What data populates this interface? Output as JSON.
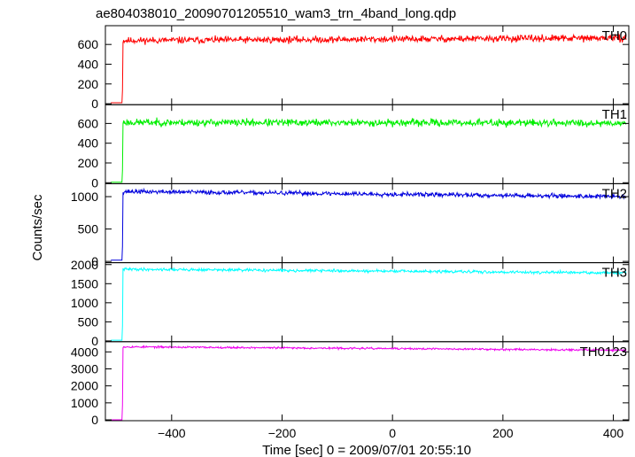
{
  "title": "ae804038010_20090701205510_wam3_trn_4band_long.qdp",
  "xlabel": "Time [sec] 0 = 2009/07/01 20:55:10",
  "ylabel": "Counts/sec",
  "chart_data": {
    "type": "line",
    "title": "ae804038010_20090701205510_wam3_trn_4band_long.qdp",
    "xlabel": "Time [sec] 0 = 2009/07/01 20:55:10",
    "ylabel": "Counts/sec",
    "xlim": [
      -520,
      428
    ],
    "x_ticks": [
      -400,
      -200,
      0,
      200,
      400
    ],
    "x_tick_labels": [
      "−400",
      "−200",
      "0",
      "200",
      "400"
    ],
    "grid": false,
    "panels": [
      {
        "name": "TH0",
        "color": "#ff0000",
        "ylim": [
          -10,
          790
        ],
        "y_ticks": [
          0,
          200,
          400,
          600
        ],
        "y_tick_labels": [
          "0",
          "200",
          "400",
          "600"
        ],
        "pre_level": 10,
        "jump_x": -488,
        "level_start": 640,
        "level_end": 665,
        "noise": 28,
        "seed": 11
      },
      {
        "name": "TH1",
        "color": "#00ee00",
        "ylim": [
          -10,
          790
        ],
        "y_ticks": [
          0,
          200,
          400,
          600
        ],
        "y_tick_labels": [
          "0",
          "200",
          "400",
          "600"
        ],
        "pre_level": 5,
        "jump_x": -488,
        "level_start": 610,
        "level_end": 605,
        "noise": 30,
        "seed": 23
      },
      {
        "name": "TH2",
        "color": "#0000dd",
        "ylim": [
          -20,
          1200
        ],
        "y_ticks": [
          0,
          500,
          1000
        ],
        "y_tick_labels": [
          "0",
          "500",
          "1000"
        ],
        "pre_level": 20,
        "jump_x": -488,
        "level_start": 1080,
        "level_end": 1000,
        "noise": 28,
        "seed": 37
      },
      {
        "name": "TH3",
        "color": "#00ffff",
        "ylim": [
          -20,
          2050
        ],
        "y_ticks": [
          0,
          500,
          1000,
          1500,
          2000
        ],
        "y_tick_labels": [
          "0",
          "500",
          "1000",
          "1500",
          "2000"
        ],
        "pre_level": 20,
        "jump_x": -488,
        "level_start": 1880,
        "level_end": 1780,
        "noise": 30,
        "seed": 41
      },
      {
        "name": "TH0123",
        "color": "#ee00ee",
        "ylim": [
          -50,
          4600
        ],
        "y_ticks": [
          0,
          1000,
          2000,
          3000,
          4000
        ],
        "y_tick_labels": [
          "0",
          "1000",
          "2000",
          "3000",
          "4000"
        ],
        "pre_level": 0,
        "jump_x": -488,
        "level_start": 4300,
        "level_end": 4100,
        "noise": 45,
        "seed": 53
      }
    ]
  }
}
